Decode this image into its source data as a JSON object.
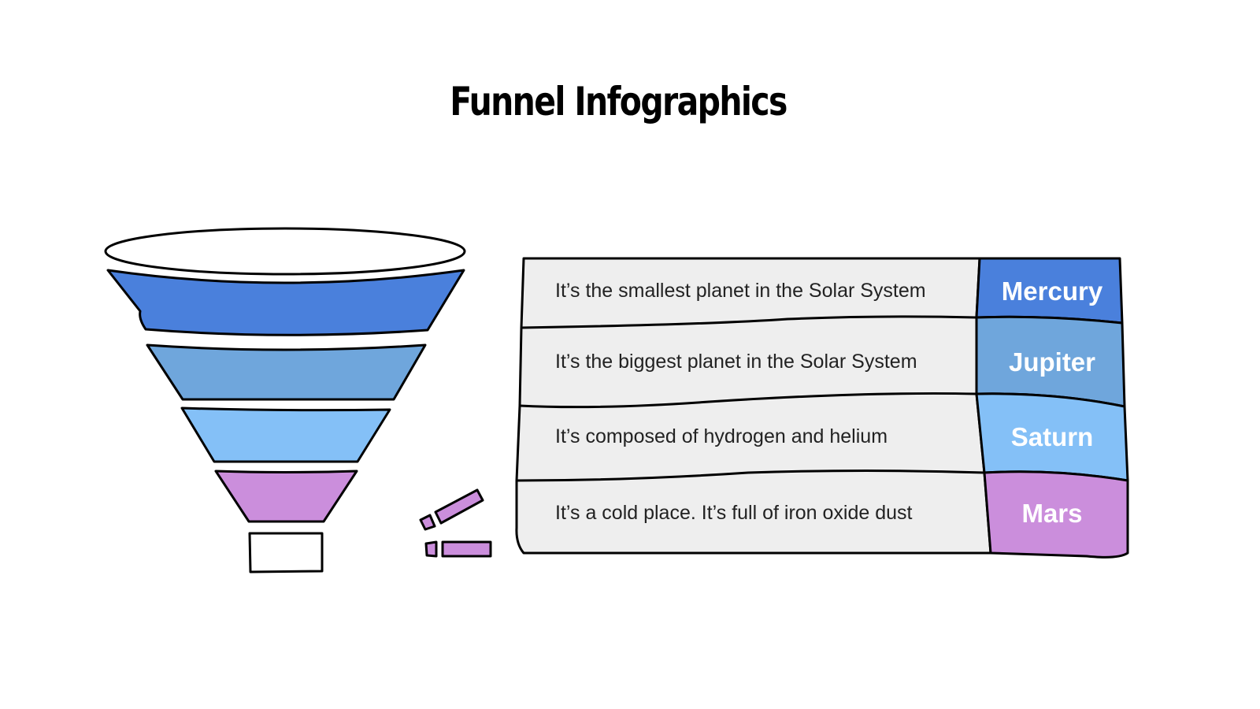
{
  "title": "Funnel Infographics",
  "colors": {
    "mercury": "#4a80dc",
    "jupiter": "#6fa6dc",
    "saturn": "#84c0f7",
    "mars": "#cb8edc",
    "row_bg": "#eeeeee"
  },
  "rows": [
    {
      "label": "Mercury",
      "description": "It’s the smallest planet in the Solar System"
    },
    {
      "label": "Jupiter",
      "description": "It’s the biggest planet in the Solar System"
    },
    {
      "label": "Saturn",
      "description": "It’s composed of hydrogen and helium"
    },
    {
      "label": "Mars",
      "description": "It’s a cold place. It’s full of iron oxide dust"
    }
  ]
}
